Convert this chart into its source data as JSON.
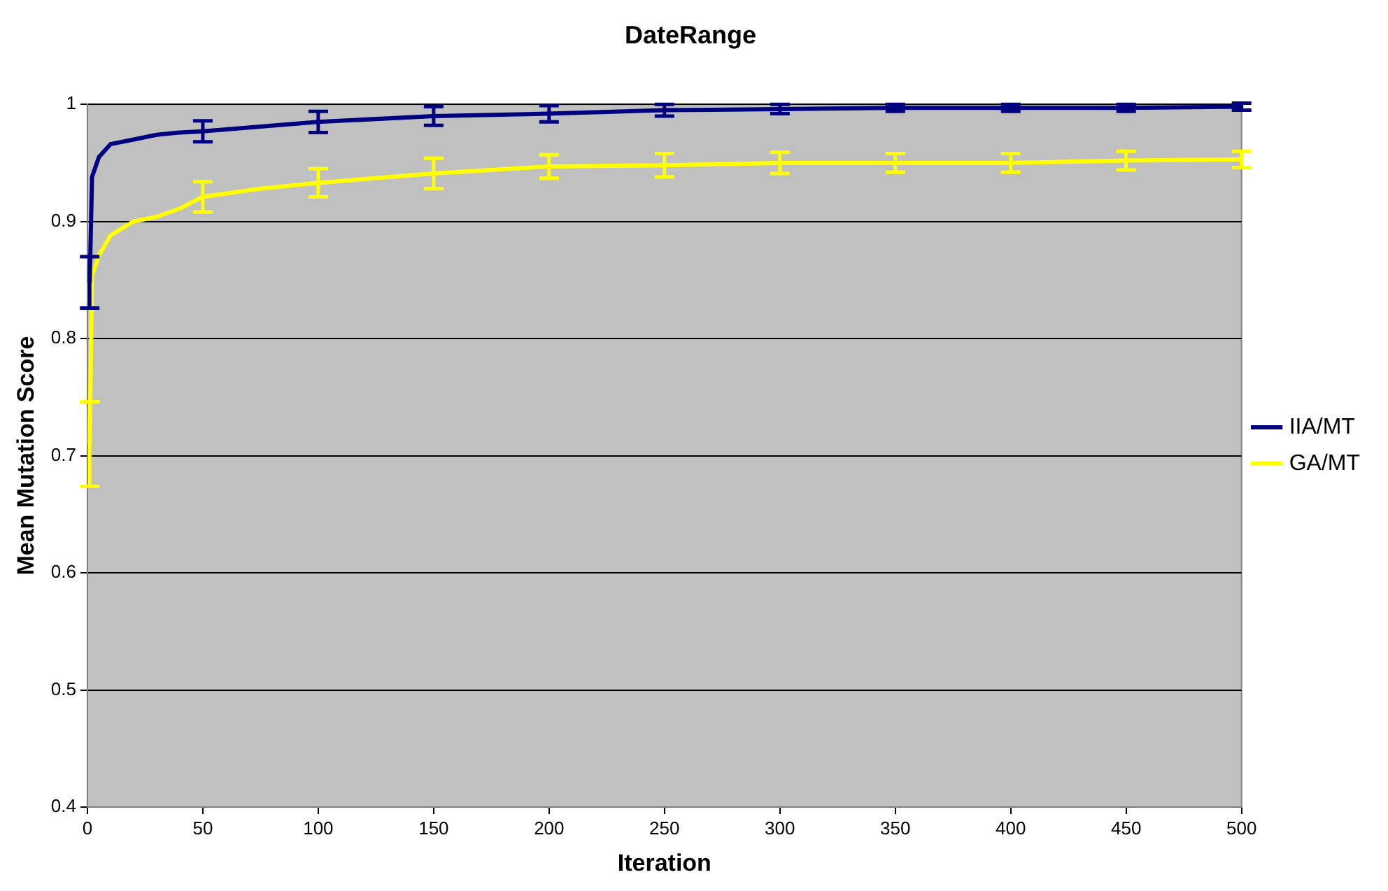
{
  "chart_data": {
    "type": "line",
    "title": "DateRange",
    "xlabel": "Iteration",
    "ylabel": "Mean Mutation Score",
    "x": [
      1,
      2,
      5,
      10,
      20,
      30,
      40,
      50,
      75,
      100,
      150,
      200,
      250,
      300,
      350,
      400,
      450,
      500
    ],
    "series": [
      {
        "name": "IIA/MT",
        "color": "#000080",
        "values": [
          0.848,
          0.938,
          0.955,
          0.966,
          0.97,
          0.974,
          0.976,
          0.977,
          0.981,
          0.985,
          0.99,
          0.992,
          0.995,
          0.996,
          0.997,
          0.997,
          0.997,
          0.998
        ],
        "errors": [
          0.022,
          null,
          null,
          null,
          null,
          null,
          null,
          0.009,
          null,
          0.009,
          0.008,
          0.007,
          0.005,
          0.004,
          0.003,
          0.003,
          0.003,
          0.003
        ]
      },
      {
        "name": "GA/MT",
        "color": "#ffff00",
        "values": [
          0.71,
          0.854,
          0.871,
          0.888,
          0.9,
          0.904,
          0.911,
          0.921,
          0.928,
          0.933,
          0.941,
          0.947,
          0.948,
          0.95,
          0.95,
          0.95,
          0.952,
          0.953
        ],
        "errors": [
          0.036,
          null,
          null,
          null,
          null,
          null,
          null,
          0.013,
          null,
          0.012,
          0.013,
          0.01,
          0.01,
          0.009,
          0.008,
          0.008,
          0.008,
          0.007
        ]
      }
    ],
    "xlim": [
      0,
      500
    ],
    "xticks": [
      0,
      50,
      100,
      150,
      200,
      250,
      300,
      350,
      400,
      450,
      500
    ],
    "ylim": [
      0.4,
      1
    ],
    "yticks": [
      0.4,
      0.5,
      0.6,
      0.7,
      0.8,
      0.9,
      1
    ],
    "grid": "y",
    "legend": "right",
    "marker": "none",
    "line_style": "solid"
  }
}
